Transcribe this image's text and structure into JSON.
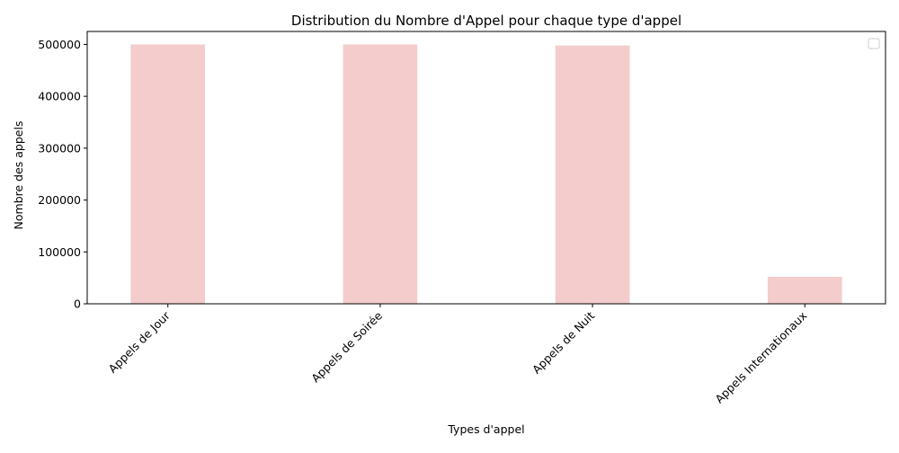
{
  "chart_data": {
    "type": "bar",
    "title": "Distribution du Nombre d'Appel pour chaque type d'appel",
    "xlabel": "Types d'appel",
    "ylabel": "Nombre des appels",
    "categories": [
      "Appels de Jour",
      "Appels de Soirée",
      "Appels de Nuit",
      "Appels Internationaux"
    ],
    "values": [
      500000,
      500000,
      498000,
      52000
    ],
    "ylim": [
      0,
      525000
    ],
    "yticks": [
      0,
      100000,
      200000,
      300000,
      400000,
      500000
    ],
    "ytick_labels": [
      "0",
      "100000",
      "200000",
      "300000",
      "400000",
      "500000"
    ],
    "bar_color": "#f4cccc",
    "grid": false,
    "legend": {
      "placement": "top-right",
      "entries": []
    },
    "xtick_rotation": 45
  }
}
